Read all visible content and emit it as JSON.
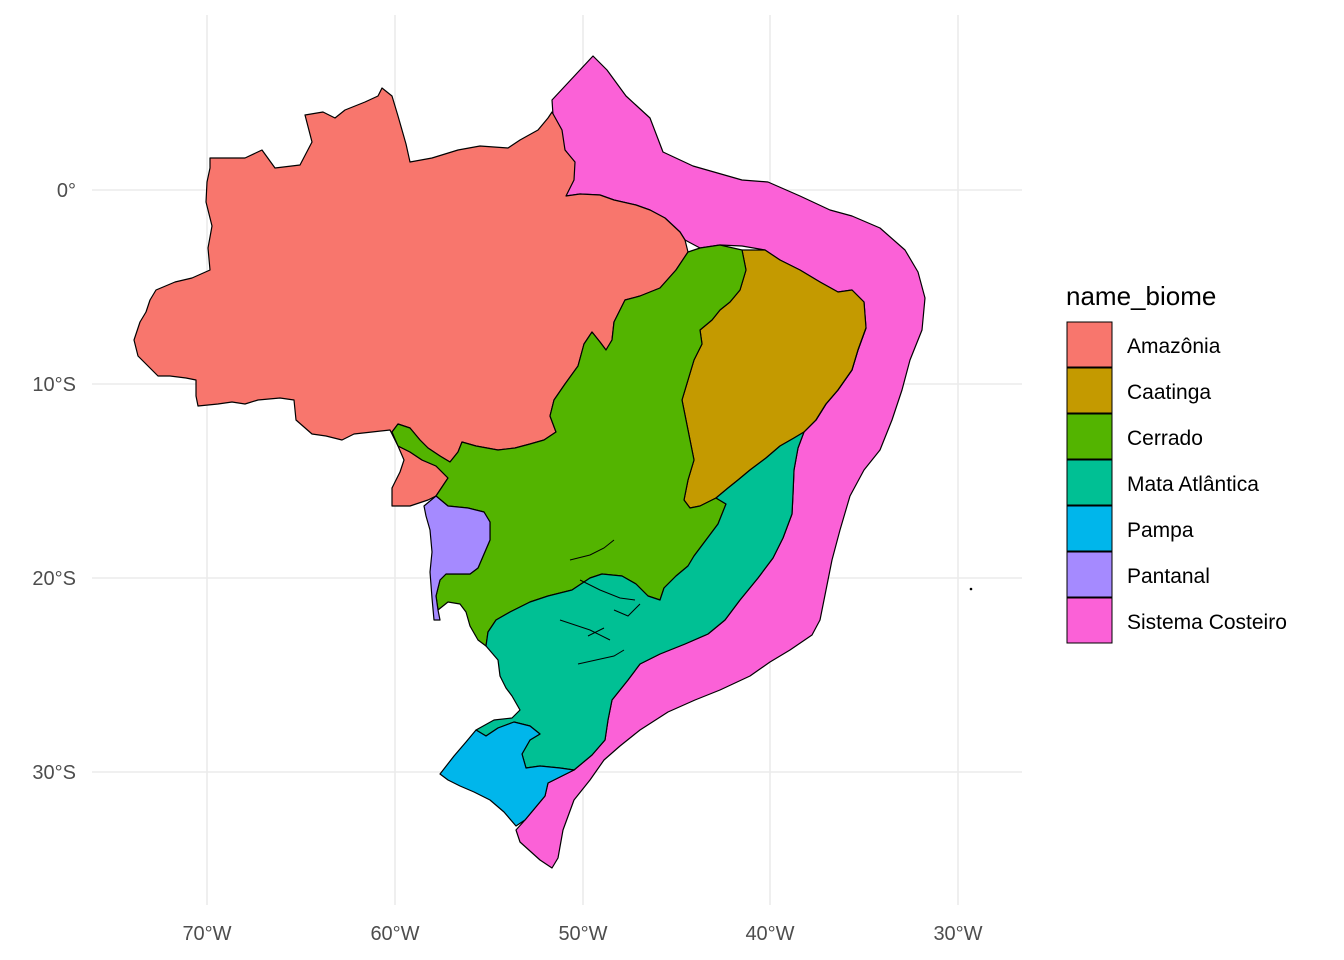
{
  "map": {
    "projection": "longitude-latitude",
    "background": "#ffffff",
    "grid_color": "#ebebeb",
    "x_axis_ticks": [
      "70°W",
      "60°W",
      "50°W",
      "40°W",
      "30°W"
    ],
    "y_axis_ticks": [
      "0°",
      "10°S",
      "20°S",
      "30°S"
    ],
    "legend": {
      "title": "name_biome",
      "placement": "right",
      "items": [
        {
          "label": "Amazônia",
          "color": "#F8766D"
        },
        {
          "label": "Caatinga",
          "color": "#C49A00"
        },
        {
          "label": "Cerrado",
          "color": "#53B400"
        },
        {
          "label": "Mata Atlântica",
          "color": "#00C094"
        },
        {
          "label": "Pampa",
          "color": "#00B6EB"
        },
        {
          "label": "Pantanal",
          "color": "#A58AFF"
        },
        {
          "label": "Sistema Costeiro",
          "color": "#FB61D7"
        }
      ]
    }
  }
}
